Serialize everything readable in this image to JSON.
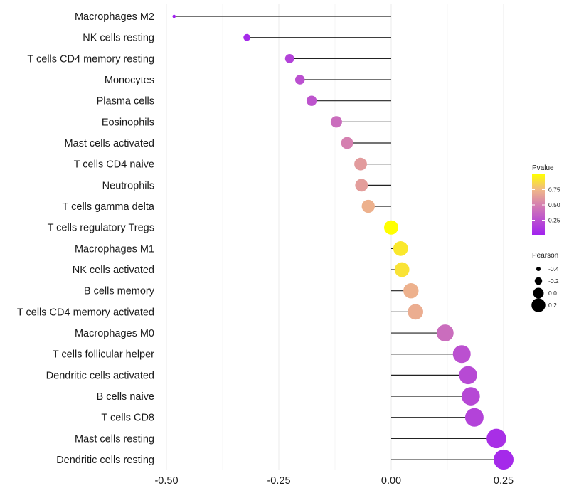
{
  "chart_data": {
    "type": "lollipop",
    "title": "",
    "xlabel": "",
    "ylabel": "",
    "xlim": [
      -0.52,
      0.28
    ],
    "x_ticks": [
      -0.5,
      -0.25,
      0.0,
      0.25
    ],
    "x_tick_labels": [
      "-0.50",
      "-0.25",
      "0.00",
      "0.25"
    ],
    "grid": true,
    "categories": [
      "Macrophages M2",
      "NK cells resting",
      "T cells CD4 memory resting",
      "Monocytes",
      "Plasma cells",
      "Eosinophils",
      "Mast cells activated",
      "T cells CD4 naive",
      "Neutrophils",
      "T cells gamma delta",
      "T cells regulatory  Tregs ",
      "Macrophages M1",
      "NK cells activated",
      "B cells memory",
      "T cells CD4 memory activated",
      "Macrophages M0",
      "T cells follicular helper",
      "Dendritic cells activated",
      "B cells naive",
      "T cells CD8",
      "Mast cells resting",
      "Dendritic cells resting"
    ],
    "pearson": [
      -0.483,
      -0.321,
      -0.226,
      -0.203,
      -0.177,
      -0.122,
      -0.098,
      -0.068,
      -0.066,
      -0.051,
      0.0,
      0.021,
      0.024,
      0.044,
      0.054,
      0.12,
      0.157,
      0.171,
      0.177,
      0.185,
      0.234,
      0.25
    ],
    "pvalue": [
      0.0,
      0.05,
      0.18,
      0.25,
      0.27,
      0.4,
      0.5,
      0.62,
      0.63,
      0.72,
      1.0,
      0.92,
      0.9,
      0.72,
      0.7,
      0.4,
      0.25,
      0.22,
      0.21,
      0.18,
      0.08,
      0.05
    ],
    "legends": {
      "color": {
        "title": "Pvalue",
        "breaks": [
          0.25,
          0.5,
          0.75
        ],
        "labels": [
          "0.25",
          "0.50",
          "0.75"
        ],
        "range": [
          0,
          1
        ],
        "low_color": "#a020f0",
        "mid_color": "#d67fb1",
        "high_color": "#ffff00"
      },
      "size": {
        "title": "Pearson",
        "breaks": [
          -0.4,
          -0.2,
          0.0,
          0.2
        ],
        "labels": [
          "-0.4",
          "-0.2",
          "0.0",
          "0.2"
        ]
      },
      "placement": "right"
    }
  }
}
